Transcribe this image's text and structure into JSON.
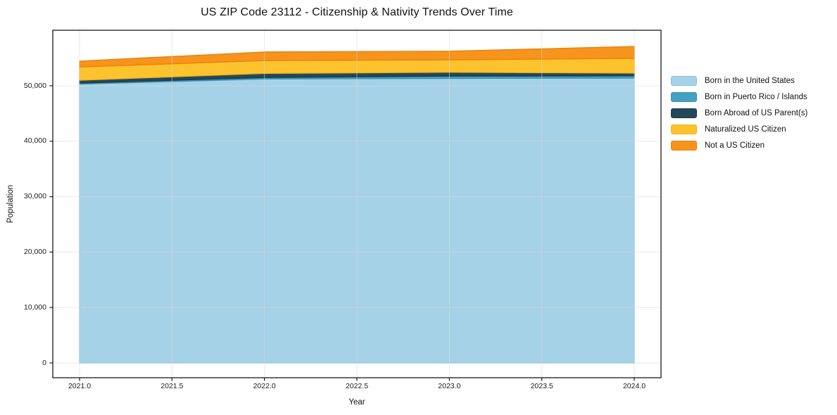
{
  "chart_data": {
    "type": "area",
    "stacked": true,
    "title": "US ZIP Code 23112 - Citizenship & Nativity Trends Over Time",
    "xlabel": "Year",
    "ylabel": "Population",
    "x": [
      2021,
      2022,
      2023,
      2024
    ],
    "series": [
      {
        "name": "Born in the United States",
        "color": "#A6D2E8",
        "edge": "#8CC0DE",
        "values": [
          50300,
          51250,
          51350,
          51400
        ]
      },
      {
        "name": "Born in Puerto Rico / Islands",
        "color": "#45A1C2",
        "edge": "#3892B3",
        "values": [
          200,
          250,
          400,
          400
        ]
      },
      {
        "name": "Born Abroad of US Parent(s)",
        "color": "#23485A",
        "edge": "#1B3A4A",
        "values": [
          500,
          750,
          700,
          500
        ]
      },
      {
        "name": "Naturalized US Citizen",
        "color": "#FDC32E",
        "edge": "#F2B214",
        "values": [
          2400,
          2300,
          2250,
          2650
        ]
      },
      {
        "name": "Not a US Citizen",
        "color": "#F7941E",
        "edge": "#E8820A",
        "values": [
          1050,
          1550,
          1550,
          2150
        ]
      }
    ],
    "totals": [
      54450,
      56100,
      56250,
      57100
    ],
    "xticks": [
      2021.0,
      2021.5,
      2022.0,
      2022.5,
      2023.0,
      2023.5,
      2024.0
    ],
    "xtick_labels": [
      "2021.0",
      "2021.5",
      "2022.0",
      "2022.5",
      "2023.0",
      "2023.5",
      "2024.0"
    ],
    "yticks": [
      0,
      10000,
      20000,
      30000,
      40000,
      50000
    ],
    "ytick_labels": [
      "0",
      "10,000",
      "20,000",
      "30,000",
      "40,000",
      "50,000"
    ],
    "grid": true,
    "legend_position": "right of plot",
    "colors": {
      "background": "#ffffff",
      "spine": "#1a1a1a",
      "gridline": "#d9d9d9",
      "text": "#111111"
    }
  }
}
